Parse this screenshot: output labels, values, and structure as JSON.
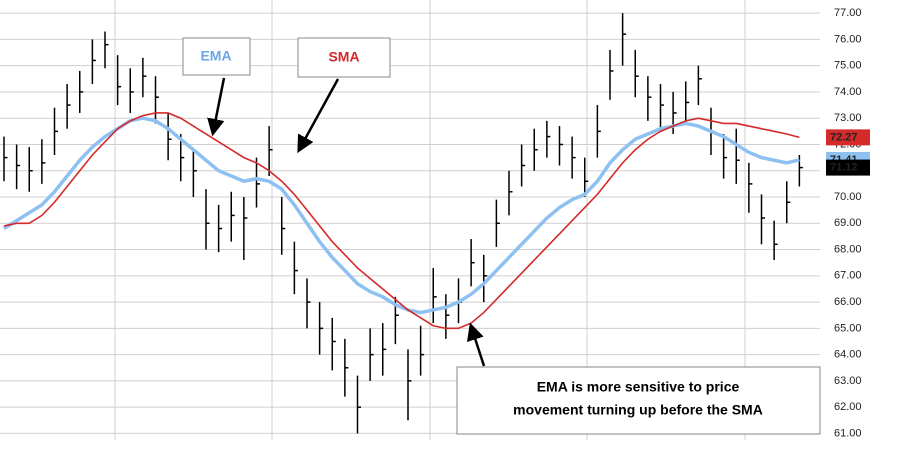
{
  "chart_data": {
    "type": "ohlc",
    "high": [
      72.3,
      72.0,
      71.9,
      72.2,
      73.4,
      74.3,
      74.8,
      76.0,
      76.3,
      75.4,
      74.9,
      75.3,
      74.6,
      73.2,
      72.4,
      71.8,
      70.3,
      69.7,
      70.2,
      70.0,
      71.5,
      72.7,
      70.0,
      68.3,
      66.9,
      66.0,
      65.4,
      64.6,
      63.2,
      65.0,
      65.2,
      66.2,
      64.2,
      65.1,
      67.3,
      66.3,
      66.9,
      68.4,
      67.8,
      69.9,
      71.0,
      72.0,
      72.6,
      72.9,
      72.7,
      72.3,
      71.5,
      73.5,
      75.6,
      77.0,
      75.6,
      74.6,
      74.3,
      74.0,
      74.4,
      75.0,
      73.4,
      72.4,
      72.6,
      71.3,
      70.1,
      69.1,
      70.6,
      71.6
    ],
    "low": [
      70.6,
      70.3,
      70.2,
      70.5,
      71.6,
      72.6,
      73.2,
      74.3,
      74.9,
      73.5,
      73.2,
      73.8,
      72.8,
      71.4,
      70.6,
      70.0,
      68.0,
      67.9,
      68.3,
      67.6,
      69.6,
      70.8,
      67.8,
      66.3,
      65.0,
      64.0,
      63.4,
      62.4,
      61.0,
      63.0,
      63.2,
      64.4,
      61.5,
      63.2,
      65.2,
      64.6,
      65.2,
      66.6,
      66.0,
      68.1,
      69.3,
      70.4,
      71.0,
      71.5,
      71.2,
      70.7,
      70.0,
      71.5,
      73.7,
      75.0,
      73.8,
      72.9,
      72.6,
      72.4,
      72.8,
      73.5,
      71.6,
      70.7,
      70.5,
      69.4,
      68.2,
      67.6,
      69.0,
      70.4
    ],
    "close": [
      71.5,
      71.2,
      71.0,
      71.3,
      72.5,
      73.5,
      74.0,
      75.2,
      75.8,
      74.2,
      74.0,
      74.6,
      73.8,
      72.2,
      71.5,
      71.0,
      69.0,
      68.8,
      69.3,
      69.2,
      70.5,
      71.8,
      68.8,
      67.2,
      66.0,
      65.0,
      64.5,
      63.5,
      62.0,
      64.0,
      64.2,
      65.5,
      63.0,
      64.0,
      66.2,
      65.5,
      66.0,
      67.5,
      67.0,
      69.0,
      70.2,
      71.2,
      71.8,
      72.3,
      72.0,
      71.5,
      70.6,
      72.5,
      74.8,
      76.2,
      74.6,
      73.8,
      73.5,
      73.2,
      73.6,
      74.5,
      72.5,
      71.5,
      71.4,
      70.5,
      69.2,
      68.2,
      69.8,
      71.12
    ],
    "bar_color": "#000000",
    "series": [
      {
        "name": "EMA",
        "color": "#8ec0f2",
        "values": [
          68.8,
          69.1,
          69.4,
          69.7,
          70.2,
          70.8,
          71.4,
          71.9,
          72.3,
          72.6,
          72.9,
          73.0,
          72.9,
          72.6,
          72.2,
          71.8,
          71.4,
          71.0,
          70.8,
          70.6,
          70.7,
          70.6,
          70.3,
          69.7,
          69.0,
          68.3,
          67.7,
          67.2,
          66.7,
          66.4,
          66.2,
          65.9,
          65.7,
          65.6,
          65.7,
          65.8,
          66.0,
          66.3,
          66.7,
          67.2,
          67.7,
          68.2,
          68.7,
          69.2,
          69.6,
          69.9,
          70.1,
          70.6,
          71.3,
          71.8,
          72.2,
          72.4,
          72.6,
          72.7,
          72.8,
          72.7,
          72.5,
          72.3,
          72.0,
          71.7,
          71.5,
          71.4,
          71.3,
          71.41
        ]
      },
      {
        "name": "SMA",
        "color": "#d42a2a",
        "values": [
          68.9,
          69.0,
          69.0,
          69.3,
          69.8,
          70.4,
          71.0,
          71.6,
          72.1,
          72.6,
          72.9,
          73.1,
          73.2,
          73.2,
          73.0,
          72.7,
          72.4,
          72.1,
          71.8,
          71.5,
          71.3,
          71.0,
          70.6,
          70.1,
          69.5,
          68.9,
          68.3,
          67.8,
          67.3,
          66.9,
          66.5,
          66.1,
          65.7,
          65.4,
          65.1,
          65.0,
          65.0,
          65.2,
          65.6,
          66.1,
          66.6,
          67.1,
          67.6,
          68.1,
          68.6,
          69.1,
          69.6,
          70.1,
          70.7,
          71.3,
          71.8,
          72.2,
          72.5,
          72.7,
          72.9,
          73.0,
          72.9,
          72.8,
          72.8,
          72.7,
          72.6,
          72.5,
          72.4,
          72.27
        ]
      }
    ],
    "ylim": [
      60.75,
      77.5
    ],
    "yticks": [
      {
        "value": 61,
        "label": "61.00"
      },
      {
        "value": 62,
        "label": "62.00"
      },
      {
        "value": 63,
        "label": "63.00"
      },
      {
        "value": 64,
        "label": "64.00"
      },
      {
        "value": 65,
        "label": "65.00"
      },
      {
        "value": 66,
        "label": "66.00"
      },
      {
        "value": 67,
        "label": "67.00"
      },
      {
        "value": 68,
        "label": "68.00"
      },
      {
        "value": 69,
        "label": "69.00"
      },
      {
        "value": 70,
        "label": "70.00"
      },
      {
        "value": 71,
        "label": "71.00"
      },
      {
        "value": 72,
        "label": "72.00"
      },
      {
        "value": 73,
        "label": "73.00"
      },
      {
        "value": 74,
        "label": "74.00"
      },
      {
        "value": 75,
        "label": "75.00"
      },
      {
        "value": 76,
        "label": "76.00"
      },
      {
        "value": 77,
        "label": "77.00"
      }
    ],
    "grid": true,
    "annotation": [
      "EMA is more sensitive to price",
      "movement turning up before the SMA"
    ]
  }
}
